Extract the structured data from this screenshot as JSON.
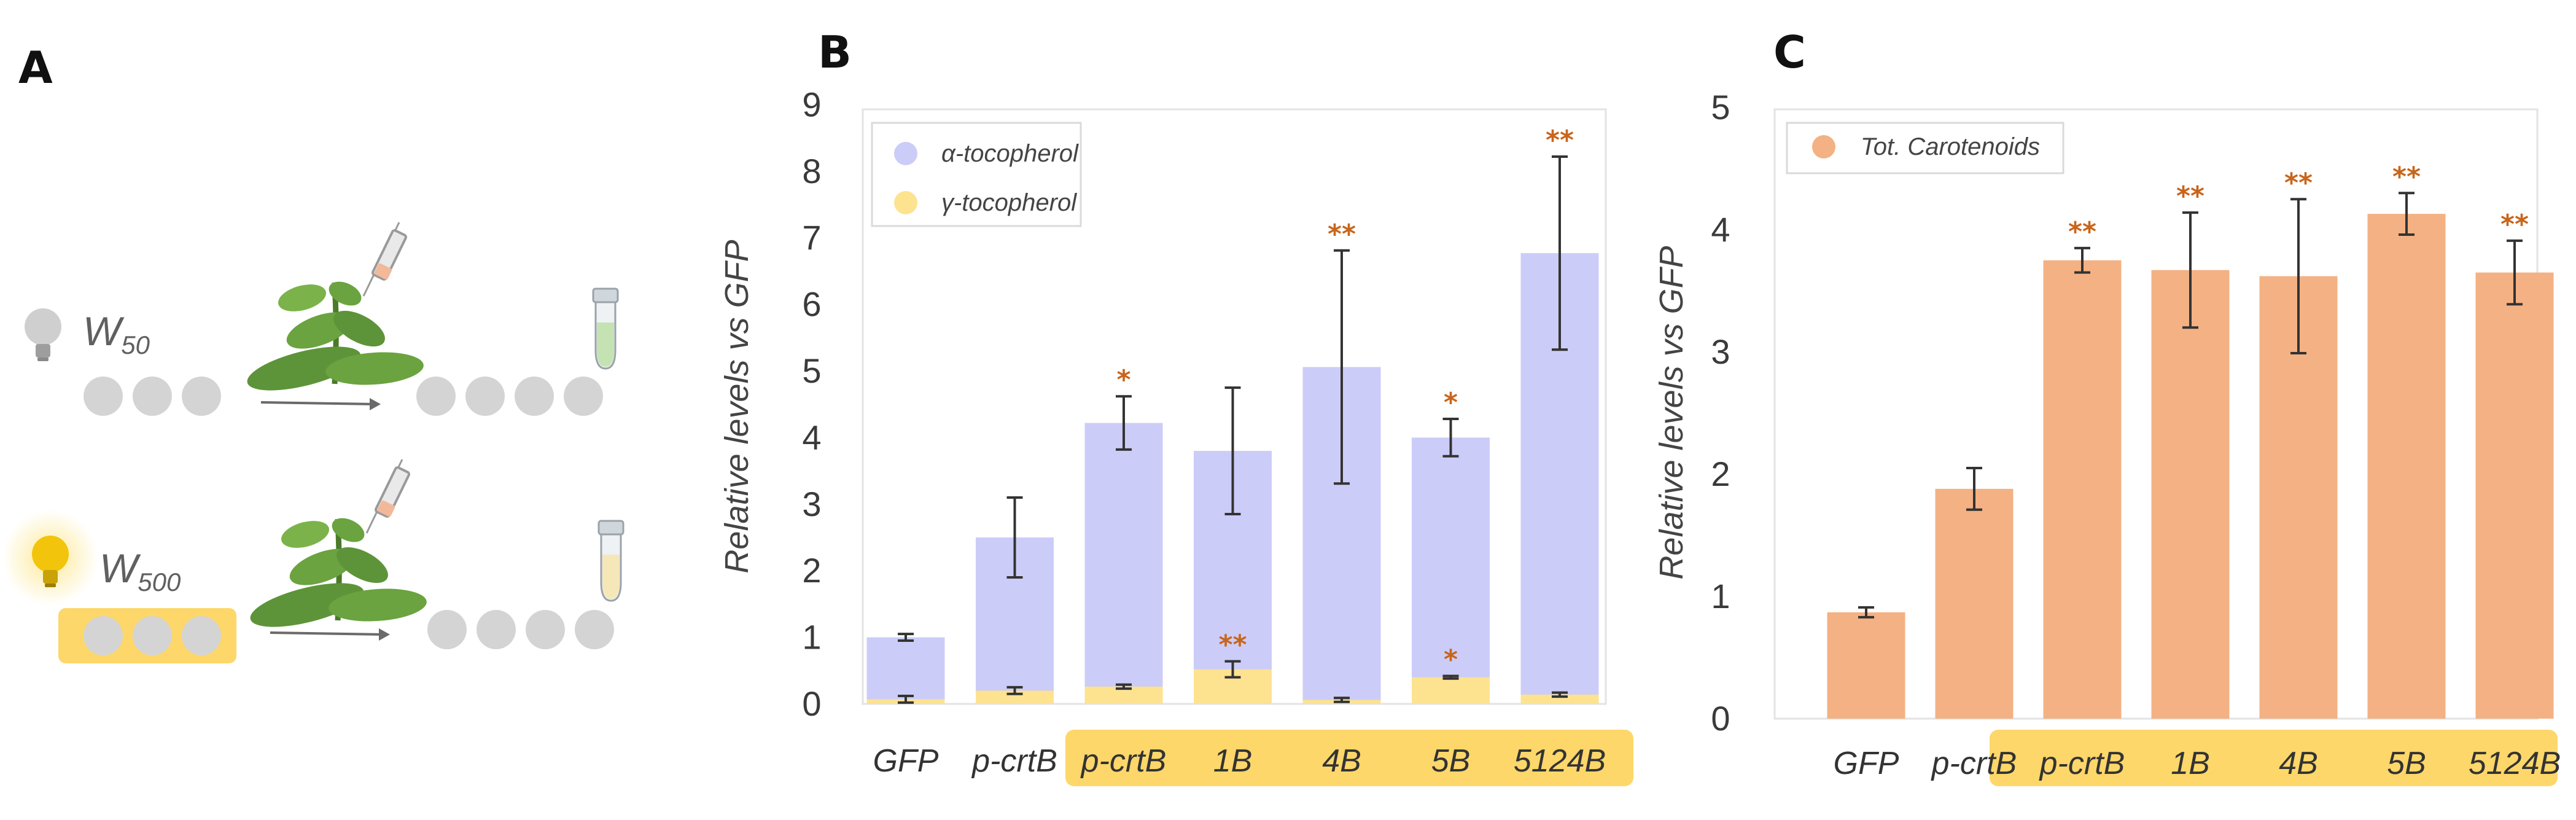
{
  "panels": {
    "a": {
      "letter": "A",
      "conditions": [
        {
          "label": "W",
          "sub": "50",
          "bulb": "off"
        },
        {
          "label": "W",
          "sub": "500",
          "bulb": "on"
        }
      ]
    },
    "b": {
      "letter": "B"
    },
    "c": {
      "letter": "C"
    }
  },
  "colors": {
    "alpha": "#ccccf8",
    "gamma": "#fde290",
    "carot": "#f4b183",
    "highlight": "#fdd76a",
    "sig": "#c8651b",
    "err": "#333333"
  },
  "chart_data": [
    {
      "panel": "B",
      "type": "bar",
      "stacked": true,
      "ylabel": "Relative levels vs GFP",
      "ylim": [
        0,
        9
      ],
      "yticks": [
        "0",
        "1",
        "2",
        "3",
        "4",
        "5",
        "6",
        "7",
        "8",
        "9"
      ],
      "categories": [
        "GFP",
        "p-crtB",
        "p-crtB",
        "1B",
        "4B",
        "5B",
        "5124B"
      ],
      "highlighted_categories": [
        "p-crtB",
        "1B",
        "4B",
        "5B",
        "5124B"
      ],
      "legend_position": "top-left",
      "series": [
        {
          "name": "α-tocopherol",
          "totals": [
            1.0,
            2.5,
            4.22,
            3.8,
            5.06,
            4.0,
            6.77
          ],
          "errors": [
            0.05,
            0.6,
            0.4,
            0.95,
            1.75,
            0.28,
            1.45
          ],
          "significance": [
            "",
            "",
            "*",
            "",
            "**",
            "*",
            "**"
          ]
        },
        {
          "name": "γ-tocopherol",
          "values": [
            0.07,
            0.2,
            0.26,
            0.52,
            0.06,
            0.4,
            0.14
          ],
          "errors": [
            0.05,
            0.05,
            0.03,
            0.12,
            0.03,
            0.02,
            0.03
          ],
          "significance": [
            "",
            "",
            "",
            "**",
            "",
            "*",
            ""
          ]
        }
      ]
    },
    {
      "panel": "C",
      "type": "bar",
      "ylabel": "Relative levels vs GFP",
      "ylim": [
        0,
        5
      ],
      "yticks": [
        "0",
        "1",
        "2",
        "3",
        "4",
        "5"
      ],
      "categories": [
        "GFP",
        "p-crtB",
        "p-crtB",
        "1B",
        "4B",
        "5B",
        "5124B"
      ],
      "highlighted_categories": [
        "p-crtB",
        "1B",
        "4B",
        "5B",
        "5124B"
      ],
      "legend_position": "top-left",
      "series": [
        {
          "name": "Tot. Carotenoids",
          "values": [
            0.87,
            1.88,
            3.75,
            3.67,
            3.62,
            4.13,
            3.65
          ],
          "errors": [
            0.04,
            0.17,
            0.1,
            0.47,
            0.63,
            0.17,
            0.26
          ],
          "significance": [
            "",
            "",
            "**",
            "**",
            "**",
            "**",
            "**"
          ]
        }
      ]
    }
  ]
}
